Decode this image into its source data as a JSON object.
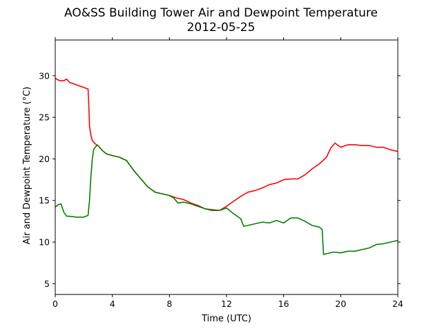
{
  "chart_data": {
    "type": "line",
    "title": "AO&SS Building Tower Air and Dewpoint Temperature",
    "subtitle": "2012-05-25",
    "xlabel": "Time (UTC)",
    "ylabel": "Air and Dewpoint Temperature (°C)",
    "xlim": [
      0,
      24
    ],
    "ylim": [
      3.7,
      34.3
    ],
    "xticks": [
      0,
      4,
      8,
      12,
      16,
      20,
      24
    ],
    "yticks": [
      5,
      10,
      15,
      20,
      25,
      30
    ],
    "grid": false,
    "legend": "none",
    "series": [
      {
        "color": "#ff0000",
        "points": [
          [
            0.0,
            29.7
          ],
          [
            0.3,
            29.4
          ],
          [
            0.6,
            29.4
          ],
          [
            0.8,
            29.6
          ],
          [
            1.0,
            29.2
          ],
          [
            1.5,
            28.9
          ],
          [
            2.0,
            28.6
          ],
          [
            2.3,
            28.4
          ],
          [
            2.35,
            26.5
          ],
          [
            2.4,
            24.0
          ],
          [
            2.5,
            22.8
          ],
          [
            2.6,
            22.2
          ],
          [
            2.8,
            21.8
          ],
          [
            3.0,
            21.6
          ],
          [
            3.3,
            21.0
          ],
          [
            3.6,
            20.6
          ],
          [
            4.0,
            20.4
          ],
          [
            4.5,
            20.2
          ],
          [
            5.0,
            19.8
          ],
          [
            5.5,
            18.6
          ],
          [
            6.0,
            17.6
          ],
          [
            6.5,
            16.6
          ],
          [
            7.0,
            16.0
          ],
          [
            7.5,
            15.8
          ],
          [
            8.0,
            15.6
          ],
          [
            8.5,
            15.3
          ],
          [
            9.0,
            15.1
          ],
          [
            9.5,
            14.7
          ],
          [
            10.0,
            14.4
          ],
          [
            10.5,
            14.0
          ],
          [
            11.0,
            13.8
          ],
          [
            11.5,
            13.8
          ],
          [
            12.0,
            14.3
          ],
          [
            12.5,
            14.9
          ],
          [
            13.0,
            15.5
          ],
          [
            13.5,
            16.0
          ],
          [
            14.0,
            16.2
          ],
          [
            14.5,
            16.5
          ],
          [
            15.0,
            16.9
          ],
          [
            15.5,
            17.1
          ],
          [
            16.0,
            17.5
          ],
          [
            16.5,
            17.6
          ],
          [
            17.0,
            17.6
          ],
          [
            17.5,
            18.1
          ],
          [
            18.0,
            18.8
          ],
          [
            18.5,
            19.4
          ],
          [
            19.0,
            20.2
          ],
          [
            19.3,
            21.3
          ],
          [
            19.6,
            21.9
          ],
          [
            20.0,
            21.4
          ],
          [
            20.5,
            21.7
          ],
          [
            21.0,
            21.7
          ],
          [
            21.5,
            21.6
          ],
          [
            22.0,
            21.6
          ],
          [
            22.5,
            21.4
          ],
          [
            23.0,
            21.4
          ],
          [
            23.5,
            21.1
          ],
          [
            24.0,
            20.9
          ]
        ]
      },
      {
        "color": "#008000",
        "points": [
          [
            0.0,
            14.2
          ],
          [
            0.2,
            14.5
          ],
          [
            0.4,
            14.6
          ],
          [
            0.6,
            13.6
          ],
          [
            0.8,
            13.1
          ],
          [
            1.0,
            13.1
          ],
          [
            1.5,
            13.0
          ],
          [
            2.0,
            13.0
          ],
          [
            2.3,
            13.2
          ],
          [
            2.4,
            15.0
          ],
          [
            2.5,
            18.0
          ],
          [
            2.6,
            20.0
          ],
          [
            2.7,
            21.2
          ],
          [
            2.9,
            21.6
          ],
          [
            3.0,
            21.6
          ],
          [
            3.3,
            21.0
          ],
          [
            3.6,
            20.6
          ],
          [
            4.0,
            20.4
          ],
          [
            4.5,
            20.2
          ],
          [
            5.0,
            19.8
          ],
          [
            5.5,
            18.6
          ],
          [
            6.0,
            17.6
          ],
          [
            6.5,
            16.6
          ],
          [
            7.0,
            16.0
          ],
          [
            7.5,
            15.8
          ],
          [
            8.0,
            15.6
          ],
          [
            8.3,
            15.3
          ],
          [
            8.6,
            14.7
          ],
          [
            9.0,
            14.8
          ],
          [
            9.5,
            14.6
          ],
          [
            10.0,
            14.3
          ],
          [
            10.5,
            14.0
          ],
          [
            11.0,
            13.9
          ],
          [
            11.5,
            13.8
          ],
          [
            12.0,
            14.1
          ],
          [
            12.5,
            13.4
          ],
          [
            13.0,
            12.8
          ],
          [
            13.2,
            11.9
          ],
          [
            13.5,
            12.0
          ],
          [
            14.0,
            12.2
          ],
          [
            14.5,
            12.4
          ],
          [
            15.0,
            12.3
          ],
          [
            15.5,
            12.6
          ],
          [
            16.0,
            12.3
          ],
          [
            16.5,
            12.9
          ],
          [
            17.0,
            12.9
          ],
          [
            17.5,
            12.5
          ],
          [
            18.0,
            12.0
          ],
          [
            18.5,
            11.8
          ],
          [
            18.7,
            11.5
          ],
          [
            18.8,
            8.5
          ],
          [
            19.0,
            8.6
          ],
          [
            19.5,
            8.8
          ],
          [
            20.0,
            8.7
          ],
          [
            20.5,
            8.9
          ],
          [
            21.0,
            8.9
          ],
          [
            21.5,
            9.1
          ],
          [
            22.0,
            9.3
          ],
          [
            22.5,
            9.7
          ],
          [
            23.0,
            9.8
          ],
          [
            23.5,
            10.0
          ],
          [
            24.0,
            10.2
          ]
        ]
      }
    ]
  }
}
